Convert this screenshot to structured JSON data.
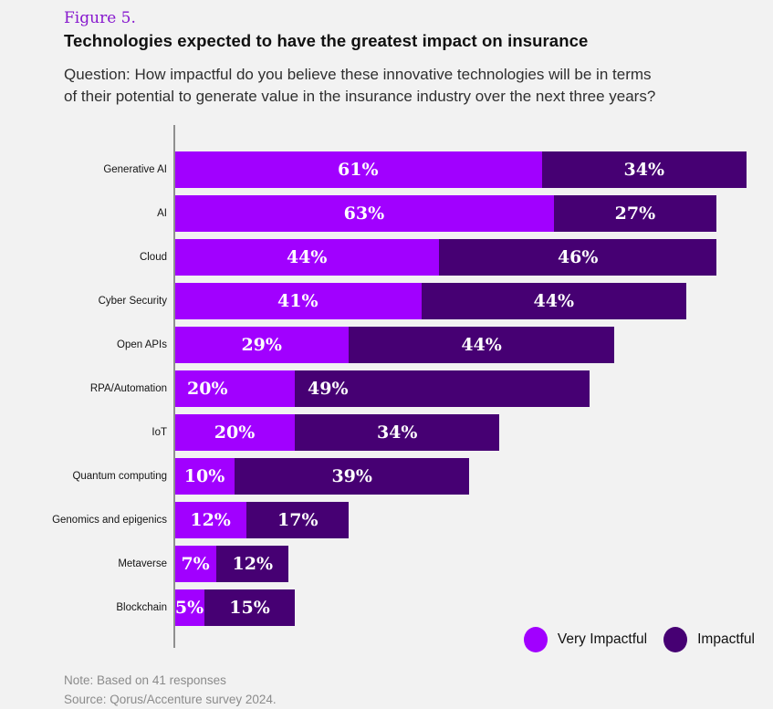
{
  "page": {
    "figure_label": "Figure 5.",
    "title": "Technologies expected to have the greatest impact on insurance",
    "question_lines": [
      "Question: How impactful do you believe these innovative technologies will be in terms",
      "of their potential to generate value in the insurance industry over the next three years?"
    ],
    "note": "Note: Based on 41 responses",
    "source": "Source: Qorus/Accenture survey 2024.",
    "background_color": "#F2F2F2",
    "figure_label_color": "#8718CE"
  },
  "legend": {
    "position": "bottom-right",
    "items": [
      {
        "label": "Very Impactful",
        "color": "#A100FF"
      },
      {
        "label": "Impactful",
        "color": "#460073"
      }
    ]
  },
  "chart_data": {
    "type": "bar",
    "orientation": "horizontal",
    "stacked": true,
    "value_unit": "%",
    "xlim": [
      0,
      100
    ],
    "grid": false,
    "value_labels": "inside-white",
    "legend_position": "bottom-right",
    "categories": [
      "Generative AI",
      "AI",
      "Cloud",
      "Cyber Security",
      "Open APIs",
      "RPA/Automation",
      "IoT",
      "Quantum computing",
      "Genomics and epigenics",
      "Metaverse",
      "Blockchain"
    ],
    "series": [
      {
        "name": "Very Impactful",
        "color": "#A100FF",
        "values": [
          61,
          63,
          44,
          41,
          29,
          20,
          20,
          10,
          12,
          7,
          5
        ]
      },
      {
        "name": "Impactful",
        "color": "#460073",
        "values": [
          34,
          27,
          46,
          44,
          44,
          49,
          34,
          39,
          17,
          12,
          15
        ]
      }
    ],
    "label_align_overrides": {
      "RPA/Automation": "left"
    }
  }
}
